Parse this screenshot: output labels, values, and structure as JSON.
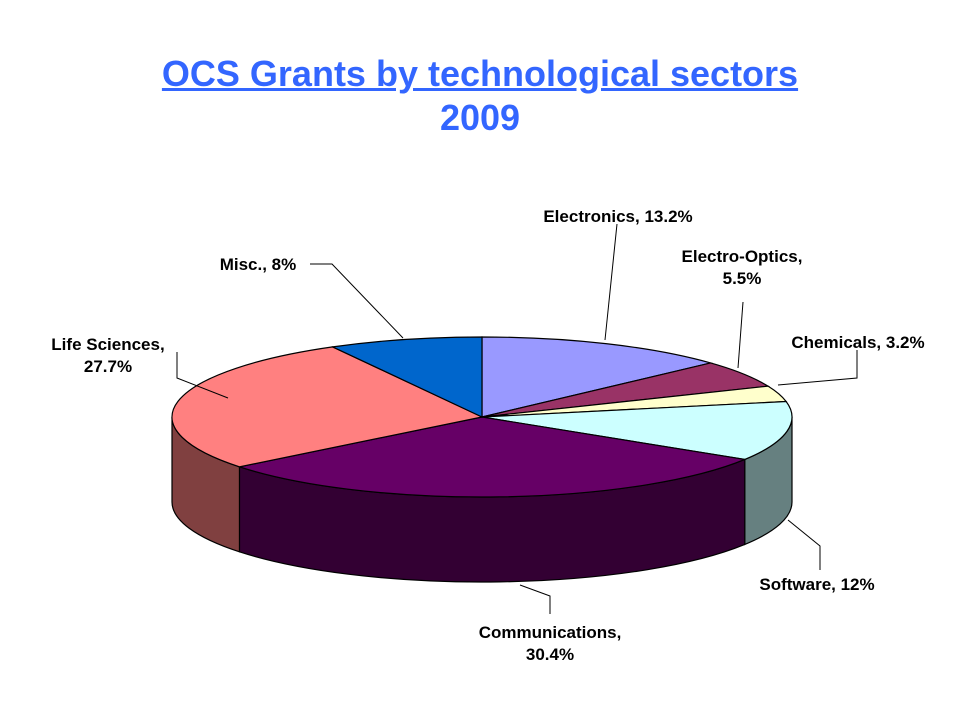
{
  "title": {
    "line1": "OCS Grants by technological sectors",
    "line2": "2009",
    "color": "#3366FF"
  },
  "chart_data": {
    "type": "pie",
    "three_d": true,
    "start_angle_deg": 90,
    "direction": "clockwise",
    "title": "OCS Grants by technological sectors 2009",
    "categories": [
      "Electronics",
      "Electro-Optics",
      "Chemicals",
      "Software",
      "Communications",
      "Life Sciences",
      "Misc."
    ],
    "values": [
      13.2,
      5.5,
      3.2,
      12,
      30.4,
      27.7,
      8
    ],
    "labels": [
      [
        "Electronics, 13.2%"
      ],
      [
        "Electro-Optics,",
        "5.5%"
      ],
      [
        "Chemicals, 3.2%"
      ],
      [
        "Software, 12%"
      ],
      [
        "Communications,",
        "30.4%"
      ],
      [
        "Life Sciences,",
        "27.7%"
      ],
      [
        "Misc., 8%"
      ]
    ],
    "colors": [
      "#9999FF",
      "#993366",
      "#FFFFCC",
      "#CCFFFF",
      "#660066",
      "#FF8080",
      "#0066CC"
    ]
  }
}
